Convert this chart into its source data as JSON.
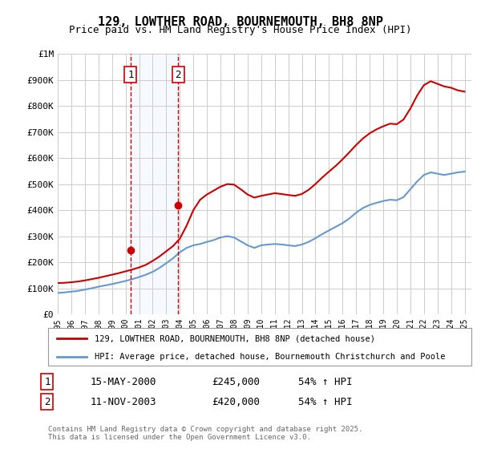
{
  "title": "129, LOWTHER ROAD, BOURNEMOUTH, BH8 8NP",
  "subtitle": "Price paid vs. HM Land Registry's House Price Index (HPI)",
  "ylabel_top": "£1M",
  "ylim": [
    0,
    1000000
  ],
  "yticks": [
    0,
    100000,
    200000,
    300000,
    400000,
    500000,
    600000,
    700000,
    800000,
    900000,
    1000000
  ],
  "ytick_labels": [
    "£0",
    "£100K",
    "£200K",
    "£300K",
    "£400K",
    "£500K",
    "£600K",
    "£700K",
    "£800K",
    "£900K",
    "£1M"
  ],
  "xlim_start": 1995.0,
  "xlim_end": 2025.5,
  "purchase1_date_num": 2000.37,
  "purchase1_label": "1",
  "purchase1_price": 245000,
  "purchase1_date_str": "15-MAY-2000",
  "purchase1_hpi_change": "54% ↑ HPI",
  "purchase2_date_num": 2003.87,
  "purchase2_label": "2",
  "purchase2_price": 420000,
  "purchase2_date_str": "11-NOV-2003",
  "purchase2_hpi_change": "54% ↑ HPI",
  "line_color_red": "#cc0000",
  "line_color_blue": "#6699cc",
  "shade_color": "#ddeeff",
  "grid_color": "#cccccc",
  "background_color": "#ffffff",
  "legend_line1": "129, LOWTHER ROAD, BOURNEMOUTH, BH8 8NP (detached house)",
  "legend_line2": "HPI: Average price, detached house, Bournemouth Christchurch and Poole",
  "footer": "Contains HM Land Registry data © Crown copyright and database right 2025.\nThis data is licensed under the Open Government Licence v3.0.",
  "hpi_years": [
    1995,
    1995.5,
    1996,
    1996.5,
    1997,
    1997.5,
    1998,
    1998.5,
    1999,
    1999.5,
    2000,
    2000.5,
    2001,
    2001.5,
    2002,
    2002.5,
    2003,
    2003.5,
    2004,
    2004.5,
    2005,
    2005.5,
    2006,
    2006.5,
    2007,
    2007.5,
    2008,
    2008.5,
    2009,
    2009.5,
    2010,
    2010.5,
    2011,
    2011.5,
    2012,
    2012.5,
    2013,
    2013.5,
    2014,
    2014.5,
    2015,
    2015.5,
    2016,
    2016.5,
    2017,
    2017.5,
    2018,
    2018.5,
    2019,
    2019.5,
    2020,
    2020.5,
    2021,
    2021.5,
    2022,
    2022.5,
    2023,
    2023.5,
    2024,
    2024.5,
    2025
  ],
  "hpi_values": [
    82000,
    84000,
    87000,
    90000,
    95000,
    100000,
    106000,
    111000,
    116000,
    122000,
    128000,
    135000,
    143000,
    152000,
    163000,
    178000,
    196000,
    215000,
    238000,
    255000,
    265000,
    270000,
    278000,
    285000,
    295000,
    300000,
    295000,
    280000,
    265000,
    255000,
    265000,
    268000,
    270000,
    268000,
    265000,
    262000,
    268000,
    278000,
    292000,
    308000,
    322000,
    336000,
    350000,
    368000,
    390000,
    408000,
    420000,
    428000,
    435000,
    440000,
    438000,
    450000,
    480000,
    510000,
    535000,
    545000,
    540000,
    535000,
    540000,
    545000,
    548000
  ],
  "price_years": [
    1995,
    1995.5,
    1996,
    1996.5,
    1997,
    1997.5,
    1998,
    1998.5,
    1999,
    1999.5,
    2000,
    2000.5,
    2001,
    2001.5,
    2002,
    2002.5,
    2003,
    2003.5,
    2004,
    2004.5,
    2005,
    2005.5,
    2006,
    2006.5,
    2007,
    2007.5,
    2008,
    2008.5,
    2009,
    2009.5,
    2010,
    2010.5,
    2011,
    2011.5,
    2012,
    2012.5,
    2013,
    2013.5,
    2014,
    2014.5,
    2015,
    2015.5,
    2016,
    2016.5,
    2017,
    2017.5,
    2018,
    2018.5,
    2019,
    2019.5,
    2020,
    2020.5,
    2021,
    2021.5,
    2022,
    2022.5,
    2023,
    2023.5,
    2024,
    2024.5,
    2025
  ],
  "price_values": [
    120000,
    121000,
    123000,
    126000,
    130000,
    135000,
    140000,
    146000,
    152000,
    158000,
    165000,
    172000,
    180000,
    190000,
    205000,
    222000,
    242000,
    262000,
    290000,
    340000,
    400000,
    440000,
    460000,
    475000,
    490000,
    500000,
    498000,
    480000,
    460000,
    448000,
    455000,
    460000,
    465000,
    462000,
    458000,
    455000,
    462000,
    478000,
    500000,
    525000,
    548000,
    570000,
    595000,
    622000,
    650000,
    675000,
    695000,
    710000,
    722000,
    732000,
    730000,
    748000,
    790000,
    840000,
    880000,
    895000,
    885000,
    875000,
    870000,
    860000,
    855000
  ]
}
